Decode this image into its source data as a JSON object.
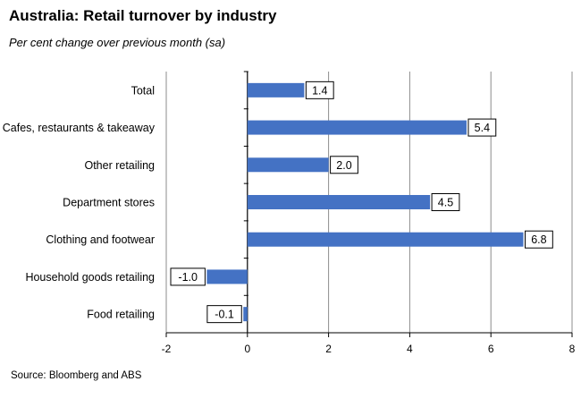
{
  "title": "Australia: Retail turnover by industry",
  "subtitle": "Per cent change over previous month (sa)",
  "source": "Source: Bloomberg and ABS",
  "colors": {
    "bar": "#4472C4",
    "grid": "#8c8c8c",
    "axis": "#000000"
  },
  "chart_data": {
    "type": "bar",
    "orientation": "horizontal",
    "categories": [
      "Total",
      "Cafes, restaurants & takeaway",
      "Other retailing",
      "Department stores",
      "Clothing and footwear",
      "Household goods retailing",
      "Food retailing"
    ],
    "values": [
      1.4,
      5.4,
      2.0,
      4.5,
      6.8,
      -1.0,
      -0.1
    ],
    "data_labels": [
      "1.4",
      "5.4",
      "2.0",
      "4.5",
      "6.8",
      "-1.0",
      "-0.1"
    ],
    "xlim": [
      -2,
      8
    ],
    "xticks": [
      -2,
      0,
      2,
      4,
      6,
      8
    ],
    "xtick_labels": [
      "-2",
      "0",
      "2",
      "4",
      "6",
      "8"
    ],
    "grid": "vertical",
    "legend": "none"
  }
}
